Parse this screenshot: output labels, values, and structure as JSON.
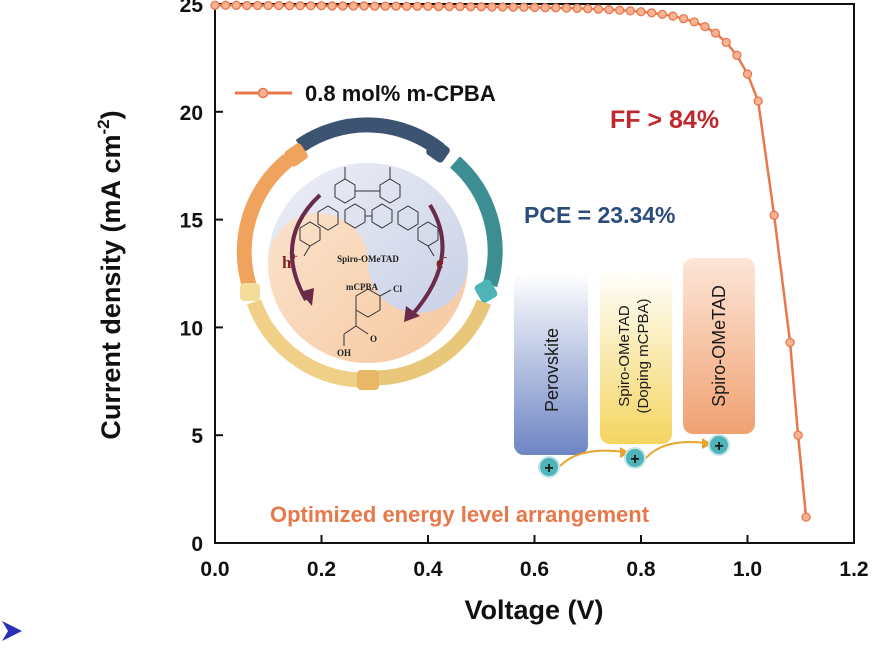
{
  "chart_data": {
    "type": "line",
    "xlabel": "Voltage (V)",
    "ylabel": "Current density (mA cm",
    "ylabel_sup": "-2",
    "ylabel_close": ")",
    "xlim": [
      0,
      1.2
    ],
    "ylim": [
      0,
      25
    ],
    "x_ticks": [
      "0.0",
      "0.2",
      "0.4",
      "0.6",
      "0.8",
      "1.0",
      "1.2"
    ],
    "y_ticks": [
      "0",
      "5",
      "10",
      "15",
      "20",
      "25"
    ],
    "grid": false,
    "legend_position": "top-left",
    "series": [
      {
        "name": "0.8 mol% m-CPBA",
        "color": "#e8784a",
        "x": [
          0.0,
          0.02,
          0.04,
          0.06,
          0.08,
          0.1,
          0.12,
          0.14,
          0.16,
          0.18,
          0.2,
          0.22,
          0.24,
          0.26,
          0.28,
          0.3,
          0.32,
          0.34,
          0.36,
          0.38,
          0.4,
          0.42,
          0.44,
          0.46,
          0.48,
          0.5,
          0.52,
          0.54,
          0.56,
          0.58,
          0.6,
          0.62,
          0.64,
          0.66,
          0.68,
          0.7,
          0.72,
          0.74,
          0.76,
          0.78,
          0.8,
          0.82,
          0.84,
          0.86,
          0.88,
          0.9,
          0.92,
          0.94,
          0.96,
          0.98,
          1.0,
          1.02,
          1.05,
          1.08,
          1.095,
          1.11
        ],
        "y": [
          24.94,
          24.94,
          24.94,
          24.93,
          24.93,
          24.93,
          24.93,
          24.92,
          24.92,
          24.92,
          24.92,
          24.91,
          24.91,
          24.91,
          24.91,
          24.9,
          24.9,
          24.9,
          24.89,
          24.89,
          24.89,
          24.88,
          24.88,
          24.88,
          24.87,
          24.87,
          24.86,
          24.86,
          24.85,
          24.85,
          24.84,
          24.83,
          24.82,
          24.81,
          24.8,
          24.78,
          24.76,
          24.74,
          24.71,
          24.68,
          24.64,
          24.59,
          24.52,
          24.44,
          24.32,
          24.17,
          23.95,
          23.65,
          23.22,
          22.62,
          21.75,
          20.5,
          15.2,
          9.3,
          5.0,
          1.2
        ]
      }
    ],
    "annotations": {
      "ff": "FF > 84%",
      "pce": "PCE = 23.34%",
      "bottom": "Optimized energy level arrangement"
    }
  },
  "inset": {
    "molecule_top": "Spiro-OMeTAD",
    "molecule_bottom": "mCPBA",
    "hole_carrier": "h",
    "hole_sup": "+",
    "electron_carrier": "e",
    "electron_sup": "-",
    "oh_label": "OH",
    "cl_label": "Cl",
    "o_label": "O"
  },
  "energy_diagram": {
    "layers": [
      {
        "label": "Perovskite",
        "color": "#6e85c4"
      },
      {
        "label_line1": "Spiro-OMeTAD",
        "label_line2": "(Doping mCPBA)",
        "color": "#f4d560"
      },
      {
        "label": "Spiro-OMeTAD",
        "color": "#f0a172"
      }
    ],
    "hole_symbol": "+"
  },
  "colors": {
    "curve": "#e8784a",
    "ff": "#c0282d",
    "pce": "#2c4d7a",
    "bottom": "#e8784a",
    "arrow": "#e8a52e",
    "marker": "#e8784a",
    "hole_fill": "#4fb4b8"
  },
  "footer_icon": "blue-arrowhead-icon"
}
